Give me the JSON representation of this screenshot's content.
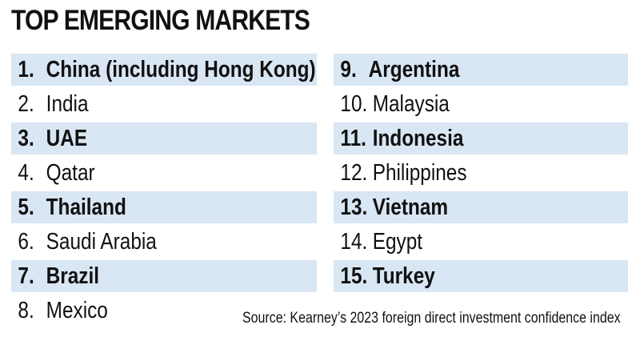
{
  "title": "TOP EMERGING MARKETS",
  "left": [
    {
      "num": "1.",
      "name": "China (including Hong Kong)"
    },
    {
      "num": "2.",
      "name": "India"
    },
    {
      "num": "3.",
      "name": "UAE"
    },
    {
      "num": "4.",
      "name": "Qatar"
    },
    {
      "num": "5.",
      "name": "Thailand"
    },
    {
      "num": "6.",
      "name": "Saudi Arabia"
    },
    {
      "num": "7.",
      "name": "Brazil"
    },
    {
      "num": "8.",
      "name": "Mexico"
    }
  ],
  "right": [
    {
      "num": "9.",
      "name": "Argentina"
    },
    {
      "num": "10.",
      "name": "Malaysia"
    },
    {
      "num": "11.",
      "name": "Indonesia"
    },
    {
      "num": "12.",
      "name": "Philippines"
    },
    {
      "num": "13.",
      "name": "Vietnam"
    },
    {
      "num": "14.",
      "name": "Egypt"
    },
    {
      "num": "15.",
      "name": "Turkey"
    }
  ],
  "source": "Source: Kearney’s 2023 foreign direct investment confidence index",
  "colors": {
    "row_shade": "#d9e6f3",
    "text": "#111111"
  }
}
